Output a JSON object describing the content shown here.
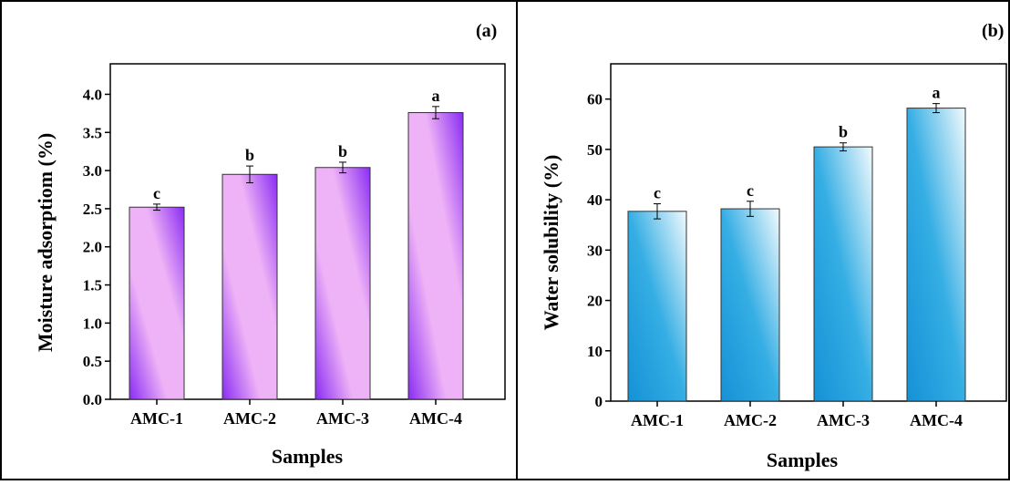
{
  "chart_data": [
    {
      "type": "bar",
      "panel_label": "(a)",
      "title": "",
      "xlabel": "Samples",
      "ylabel": "Moisture adsorptiom (%)",
      "categories": [
        "AMC-1",
        "AMC-2",
        "AMC-3",
        "AMC-4"
      ],
      "values": [
        2.52,
        2.95,
        3.04,
        3.76
      ],
      "errors": [
        0.04,
        0.11,
        0.07,
        0.08
      ],
      "significance": [
        "c",
        "b",
        "b",
        "a"
      ],
      "ylim": [
        0,
        4.4
      ],
      "yticks": [
        "0.0",
        "0.5",
        "1.0",
        "1.5",
        "2.0",
        "2.5",
        "3.0",
        "3.5",
        "4.0"
      ],
      "ytick_values": [
        0,
        0.5,
        1.0,
        1.5,
        2.0,
        2.5,
        3.0,
        3.5,
        4.0
      ],
      "colors": {
        "bar_light": "#eeb2f6",
        "bar_dark": "#8a2cf4"
      },
      "grid": false,
      "legend": "none"
    },
    {
      "type": "bar",
      "panel_label": "(b)",
      "title": "",
      "xlabel": "Samples",
      "ylabel": "Water solubility (%)",
      "categories": [
        "AMC-1",
        "AMC-2",
        "AMC-3",
        "AMC-4"
      ],
      "values": [
        37.7,
        38.2,
        50.5,
        58.2
      ],
      "errors": [
        1.5,
        1.5,
        0.8,
        0.9
      ],
      "significance": [
        "c",
        "c",
        "b",
        "a"
      ],
      "ylim": [
        0,
        67
      ],
      "yticks": [
        "0",
        "10",
        "20",
        "30",
        "40",
        "50",
        "60"
      ],
      "ytick_values": [
        0,
        10,
        20,
        30,
        40,
        50,
        60
      ],
      "colors": {
        "bar_light": "#e8f6fc",
        "bar_dark": "#1591d6"
      },
      "grid": false,
      "legend": "none"
    }
  ]
}
